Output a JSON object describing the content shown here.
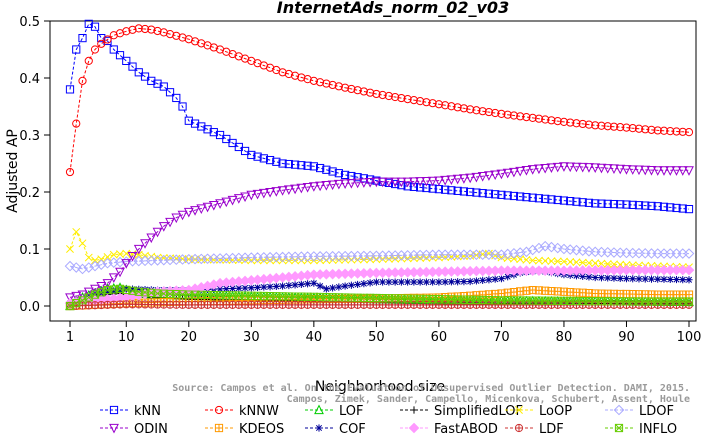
{
  "chart_data": {
    "type": "line",
    "title": "InternetAds_norm_02_v03",
    "xlabel": "Neighborhood size",
    "ylabel": "Adjusted AP",
    "xlim": [
      1,
      100
    ],
    "ylim": [
      -0.03,
      0.5
    ],
    "xticks": [
      1,
      10,
      20,
      30,
      40,
      50,
      60,
      70,
      80,
      90,
      100
    ],
    "yticks": [
      0.0,
      0.1,
      0.2,
      0.3,
      0.4,
      0.5
    ],
    "legend_position": "bottom",
    "watermark": [
      "Source: Campos et al. On the Evaluation of Unsupervised Outlier Detection. DAMI, 2015.",
      "Campos, Zimek, Sander, Campello, Micenkova, Schubert, Assent, Houle"
    ],
    "series": [
      {
        "name": "kNN",
        "color": "#0000ff",
        "marker": "square",
        "points": [
          [
            1,
            0.38
          ],
          [
            2,
            0.45
          ],
          [
            3,
            0.47
          ],
          [
            4,
            0.495
          ],
          [
            5,
            0.49
          ],
          [
            6,
            0.47
          ],
          [
            7,
            0.465
          ],
          [
            8,
            0.45
          ],
          [
            9,
            0.44
          ],
          [
            10,
            0.43
          ],
          [
            12,
            0.41
          ],
          [
            14,
            0.395
          ],
          [
            16,
            0.385
          ],
          [
            18,
            0.365
          ],
          [
            19,
            0.35
          ],
          [
            20,
            0.325
          ],
          [
            25,
            0.3
          ],
          [
            30,
            0.265
          ],
          [
            35,
            0.25
          ],
          [
            40,
            0.245
          ],
          [
            45,
            0.23
          ],
          [
            50,
            0.22
          ],
          [
            55,
            0.21
          ],
          [
            60,
            0.205
          ],
          [
            65,
            0.2
          ],
          [
            70,
            0.195
          ],
          [
            75,
            0.19
          ],
          [
            80,
            0.185
          ],
          [
            85,
            0.18
          ],
          [
            90,
            0.178
          ],
          [
            95,
            0.175
          ],
          [
            100,
            0.17
          ]
        ]
      },
      {
        "name": "kNNW",
        "color": "#ff0000",
        "marker": "circle",
        "points": [
          [
            1,
            0.235
          ],
          [
            2,
            0.32
          ],
          [
            3,
            0.395
          ],
          [
            4,
            0.43
          ],
          [
            5,
            0.45
          ],
          [
            6,
            0.46
          ],
          [
            8,
            0.475
          ],
          [
            10,
            0.482
          ],
          [
            12,
            0.487
          ],
          [
            14,
            0.485
          ],
          [
            16,
            0.48
          ],
          [
            20,
            0.468
          ],
          [
            25,
            0.45
          ],
          [
            30,
            0.43
          ],
          [
            35,
            0.41
          ],
          [
            40,
            0.395
          ],
          [
            45,
            0.383
          ],
          [
            50,
            0.372
          ],
          [
            55,
            0.363
          ],
          [
            60,
            0.354
          ],
          [
            65,
            0.345
          ],
          [
            70,
            0.337
          ],
          [
            75,
            0.33
          ],
          [
            80,
            0.323
          ],
          [
            85,
            0.317
          ],
          [
            90,
            0.313
          ],
          [
            95,
            0.308
          ],
          [
            100,
            0.305
          ]
        ]
      },
      {
        "name": "LOF",
        "color": "#00cc00",
        "marker": "triangle-up",
        "points": [
          [
            1,
            0.0
          ],
          [
            3,
            0.015
          ],
          [
            5,
            0.022
          ],
          [
            7,
            0.03
          ],
          [
            9,
            0.032
          ],
          [
            10,
            0.028
          ],
          [
            12,
            0.022
          ],
          [
            15,
            0.02
          ],
          [
            20,
            0.018
          ],
          [
            30,
            0.016
          ],
          [
            40,
            0.014
          ],
          [
            50,
            0.012
          ],
          [
            60,
            0.01
          ],
          [
            70,
            0.009
          ],
          [
            80,
            0.008
          ],
          [
            90,
            0.008
          ],
          [
            100,
            0.007
          ]
        ]
      },
      {
        "name": "SimplifiedLOF",
        "color": "#000000",
        "marker": "plus",
        "points": [
          [
            1,
            0.0
          ],
          [
            3,
            0.01
          ],
          [
            5,
            0.015
          ],
          [
            7,
            0.02
          ],
          [
            9,
            0.022
          ],
          [
            11,
            0.018
          ],
          [
            15,
            0.015
          ],
          [
            20,
            0.012
          ],
          [
            30,
            0.01
          ],
          [
            40,
            0.008
          ],
          [
            50,
            0.007
          ],
          [
            60,
            0.006
          ],
          [
            70,
            0.005
          ],
          [
            80,
            0.005
          ],
          [
            90,
            0.004
          ],
          [
            100,
            0.004
          ]
        ]
      },
      {
        "name": "LoOP",
        "color": "#ffee00",
        "marker": "x",
        "points": [
          [
            1,
            0.1
          ],
          [
            2,
            0.13
          ],
          [
            3,
            0.11
          ],
          [
            4,
            0.085
          ],
          [
            5,
            0.08
          ],
          [
            6,
            0.082
          ],
          [
            8,
            0.09
          ],
          [
            10,
            0.092
          ],
          [
            12,
            0.09
          ],
          [
            15,
            0.085
          ],
          [
            20,
            0.082
          ],
          [
            30,
            0.08
          ],
          [
            40,
            0.08
          ],
          [
            50,
            0.082
          ],
          [
            60,
            0.085
          ],
          [
            65,
            0.088
          ],
          [
            68,
            0.092
          ],
          [
            70,
            0.085
          ],
          [
            75,
            0.08
          ],
          [
            80,
            0.078
          ],
          [
            85,
            0.075
          ],
          [
            90,
            0.072
          ],
          [
            95,
            0.07
          ],
          [
            100,
            0.068
          ]
        ]
      },
      {
        "name": "LDOF",
        "color": "#aaaaff",
        "marker": "diamond",
        "points": [
          [
            1,
            0.07
          ],
          [
            3,
            0.065
          ],
          [
            5,
            0.07
          ],
          [
            7,
            0.075
          ],
          [
            10,
            0.078
          ],
          [
            15,
            0.08
          ],
          [
            20,
            0.082
          ],
          [
            30,
            0.085
          ],
          [
            40,
            0.087
          ],
          [
            50,
            0.088
          ],
          [
            60,
            0.09
          ],
          [
            70,
            0.09
          ],
          [
            74,
            0.095
          ],
          [
            77,
            0.105
          ],
          [
            80,
            0.1
          ],
          [
            85,
            0.095
          ],
          [
            90,
            0.093
          ],
          [
            95,
            0.092
          ],
          [
            100,
            0.092
          ]
        ]
      },
      {
        "name": "ODIN",
        "color": "#9900cc",
        "marker": "triangle-down",
        "points": [
          [
            1,
            0.015
          ],
          [
            3,
            0.02
          ],
          [
            5,
            0.03
          ],
          [
            7,
            0.04
          ],
          [
            9,
            0.06
          ],
          [
            10,
            0.075
          ],
          [
            12,
            0.1
          ],
          [
            14,
            0.12
          ],
          [
            16,
            0.14
          ],
          [
            18,
            0.155
          ],
          [
            20,
            0.165
          ],
          [
            25,
            0.18
          ],
          [
            30,
            0.195
          ],
          [
            35,
            0.203
          ],
          [
            40,
            0.21
          ],
          [
            45,
            0.215
          ],
          [
            50,
            0.218
          ],
          [
            55,
            0.218
          ],
          [
            60,
            0.22
          ],
          [
            65,
            0.225
          ],
          [
            70,
            0.232
          ],
          [
            75,
            0.24
          ],
          [
            80,
            0.245
          ],
          [
            85,
            0.243
          ],
          [
            90,
            0.24
          ],
          [
            95,
            0.238
          ],
          [
            100,
            0.238
          ]
        ]
      },
      {
        "name": "KDEOS",
        "color": "#ff9900",
        "marker": "square-cross",
        "points": [
          [
            1,
            0.0
          ],
          [
            10,
            0.005
          ],
          [
            20,
            0.008
          ],
          [
            30,
            0.01
          ],
          [
            40,
            0.012
          ],
          [
            50,
            0.013
          ],
          [
            60,
            0.015
          ],
          [
            65,
            0.018
          ],
          [
            70,
            0.022
          ],
          [
            75,
            0.028
          ],
          [
            80,
            0.025
          ],
          [
            85,
            0.022
          ],
          [
            90,
            0.021
          ],
          [
            95,
            0.02
          ],
          [
            100,
            0.02
          ]
        ]
      },
      {
        "name": "COF",
        "color": "#000099",
        "marker": "asterisk",
        "points": [
          [
            1,
            0.005
          ],
          [
            3,
            0.01
          ],
          [
            5,
            0.018
          ],
          [
            7,
            0.025
          ],
          [
            10,
            0.03
          ],
          [
            15,
            0.028
          ],
          [
            20,
            0.028
          ],
          [
            25,
            0.03
          ],
          [
            30,
            0.032
          ],
          [
            35,
            0.035
          ],
          [
            40,
            0.04
          ],
          [
            42,
            0.03
          ],
          [
            45,
            0.035
          ],
          [
            50,
            0.042
          ],
          [
            55,
            0.042
          ],
          [
            60,
            0.042
          ],
          [
            65,
            0.043
          ],
          [
            70,
            0.048
          ],
          [
            73,
            0.058
          ],
          [
            76,
            0.062
          ],
          [
            80,
            0.055
          ],
          [
            85,
            0.05
          ],
          [
            90,
            0.048
          ],
          [
            95,
            0.047
          ],
          [
            100,
            0.046
          ]
        ]
      },
      {
        "name": "FastABOD",
        "color": "#ff99ff",
        "marker": "diamond-filled",
        "points": [
          [
            1,
            0.005
          ],
          [
            5,
            0.01
          ],
          [
            10,
            0.015
          ],
          [
            15,
            0.025
          ],
          [
            20,
            0.028
          ],
          [
            25,
            0.04
          ],
          [
            30,
            0.045
          ],
          [
            35,
            0.05
          ],
          [
            40,
            0.055
          ],
          [
            50,
            0.058
          ],
          [
            60,
            0.06
          ],
          [
            70,
            0.062
          ],
          [
            80,
            0.062
          ],
          [
            90,
            0.063
          ],
          [
            100,
            0.063
          ]
        ]
      },
      {
        "name": "LDF",
        "color": "#cc3333",
        "marker": "circle-plus",
        "points": [
          [
            1,
            0.0
          ],
          [
            10,
            0.003
          ],
          [
            20,
            0.002
          ],
          [
            30,
            0.002
          ],
          [
            40,
            0.002
          ],
          [
            50,
            0.002
          ],
          [
            60,
            0.002
          ],
          [
            70,
            0.002
          ],
          [
            80,
            0.002
          ],
          [
            90,
            0.002
          ],
          [
            100,
            0.002
          ]
        ]
      },
      {
        "name": "INFLO",
        "color": "#66cc00",
        "marker": "square-x",
        "points": [
          [
            1,
            0.0
          ],
          [
            3,
            0.01
          ],
          [
            5,
            0.02
          ],
          [
            7,
            0.028
          ],
          [
            9,
            0.03
          ],
          [
            12,
            0.025
          ],
          [
            15,
            0.022
          ],
          [
            20,
            0.02
          ],
          [
            30,
            0.018
          ],
          [
            40,
            0.016
          ],
          [
            50,
            0.014
          ],
          [
            60,
            0.012
          ],
          [
            70,
            0.01
          ],
          [
            80,
            0.009
          ],
          [
            90,
            0.008
          ],
          [
            100,
            0.008
          ]
        ]
      }
    ]
  }
}
